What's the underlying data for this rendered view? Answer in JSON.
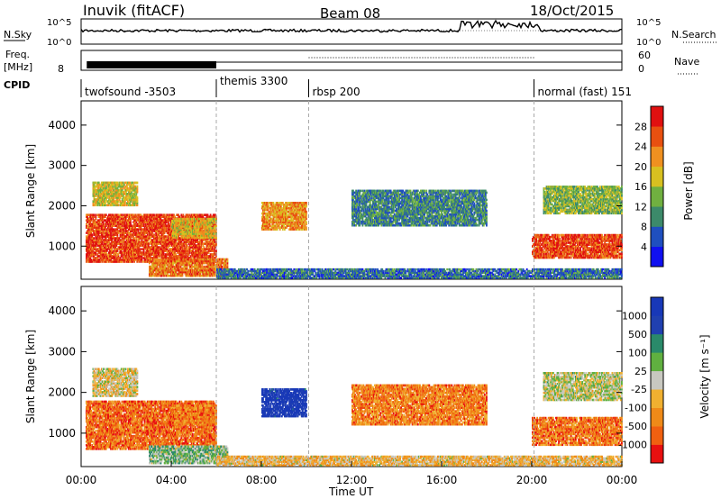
{
  "header": {
    "station": "Inuvik (fitACF)",
    "beam": "Beam 08",
    "date": "18/Oct/2015"
  },
  "top_strip": {
    "nsky_label": "N.Sky",
    "nsearch_label": "N.Search",
    "left_ticks": [
      "10^5",
      "10^0"
    ],
    "right_ticks": [
      "10^5",
      "10^0"
    ]
  },
  "freq_strip": {
    "label_line1": "Freq.",
    "label_line2": "[MHz]",
    "left_ticks": [
      "8"
    ],
    "right_ticks": [
      "60",
      "0"
    ],
    "nave_label": "Nave"
  },
  "cpid": {
    "label": "CPID",
    "modes": [
      {
        "name": "twofsound -3503",
        "start_h": 0
      },
      {
        "name": "themis 3300",
        "start_h": 6
      },
      {
        "name": "rbsp 200",
        "start_h": 10.1
      },
      {
        "name": "normal (fast) 151",
        "start_h": 20.1
      }
    ]
  },
  "chart_data": [
    {
      "type": "heatmap",
      "name": "power",
      "ylabel": "Slant Range [km]",
      "yticks": [
        "1000",
        "2000",
        "3000",
        "4000"
      ],
      "ylim": [
        180,
        4600
      ],
      "xlim": [
        0,
        24
      ],
      "colorbar": {
        "label": "Power [dB]",
        "ticks": [
          "4",
          "8",
          "12",
          "16",
          "20",
          "24",
          "28"
        ],
        "colors": [
          "#1010f0",
          "#1f4fbf",
          "#3c8a6a",
          "#70b040",
          "#d8c020",
          "#ef9020",
          "#e85010",
          "#e01010"
        ]
      },
      "regions": [
        {
          "t0": 0.2,
          "t1": 6.0,
          "r0": 600,
          "r1": 1800,
          "level": 0.85
        },
        {
          "t0": 0.5,
          "t1": 2.5,
          "r0": 2000,
          "r1": 2600,
          "level": 0.55
        },
        {
          "t0": 4.0,
          "t1": 6.0,
          "r0": 1200,
          "r1": 1700,
          "level": 0.6
        },
        {
          "t0": 3.0,
          "t1": 6.5,
          "r0": 250,
          "r1": 700,
          "level": 0.75
        },
        {
          "t0": 8.0,
          "t1": 10.0,
          "r0": 1400,
          "r1": 2100,
          "level": 0.7
        },
        {
          "t0": 12.0,
          "t1": 18.0,
          "r0": 1500,
          "r1": 2400,
          "level": 0.3
        },
        {
          "t0": 6.0,
          "t1": 24.0,
          "r0": 200,
          "r1": 450,
          "level": 0.25
        },
        {
          "t0": 20.0,
          "t1": 24.0,
          "r0": 700,
          "r1": 1300,
          "level": 0.85
        },
        {
          "t0": 20.5,
          "t1": 24.0,
          "r0": 1800,
          "r1": 2500,
          "level": 0.45
        }
      ]
    },
    {
      "type": "heatmap",
      "name": "velocity",
      "ylabel": "Slant Range [km]",
      "yticks": [
        "1000",
        "2000",
        "3000",
        "4000"
      ],
      "ylim": [
        180,
        4600
      ],
      "xlim": [
        0,
        24
      ],
      "xticks": [
        "00:00",
        "04:00",
        "08:00",
        "12:00",
        "16:00",
        "20:00",
        "00:00"
      ],
      "xlabel": "Time UT",
      "colorbar": {
        "label": "Velocity [m s⁻¹]",
        "ticks": [
          "-1000",
          "-500",
          "-100",
          "-25",
          "25",
          "100",
          "500",
          "1000"
        ],
        "colors": [
          "#e81010",
          "#f06010",
          "#ef8a18",
          "#f0b030",
          "#c8c8c0",
          "#60b040",
          "#2a8a6a",
          "#2040b0",
          "#1838b8"
        ]
      },
      "regions": [
        {
          "t0": 0.2,
          "t1": 6.0,
          "r0": 600,
          "r1": 1800,
          "level": 0.2
        },
        {
          "t0": 0.5,
          "t1": 2.5,
          "r0": 1900,
          "r1": 2600,
          "level": 0.45
        },
        {
          "t0": 4.0,
          "t1": 6.0,
          "r0": 1200,
          "r1": 1700,
          "level": 0.25
        },
        {
          "t0": 3.0,
          "t1": 6.5,
          "r0": 250,
          "r1": 700,
          "level": 0.6
        },
        {
          "t0": 8.0,
          "t1": 10.0,
          "r0": 1400,
          "r1": 2100,
          "level": 0.95
        },
        {
          "t0": 12.0,
          "t1": 18.0,
          "r0": 1200,
          "r1": 2200,
          "level": 0.25
        },
        {
          "t0": 6.0,
          "t1": 24.0,
          "r0": 200,
          "r1": 450,
          "level": 0.4
        },
        {
          "t0": 20.0,
          "t1": 24.0,
          "r0": 700,
          "r1": 1400,
          "level": 0.22
        },
        {
          "t0": 20.5,
          "t1": 24.0,
          "r0": 1800,
          "r1": 2500,
          "level": 0.5
        }
      ]
    }
  ]
}
